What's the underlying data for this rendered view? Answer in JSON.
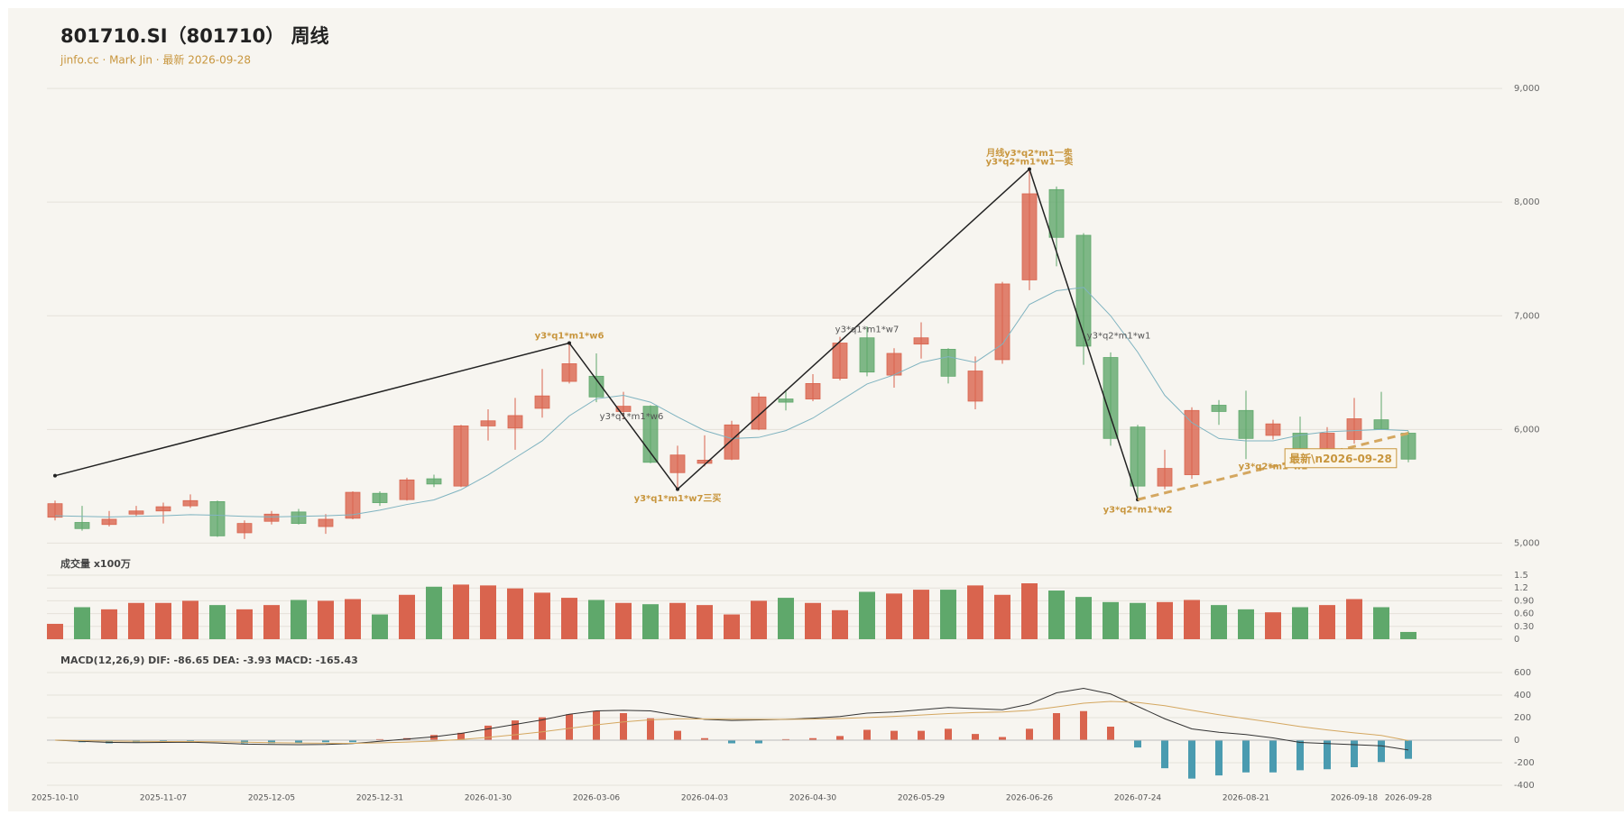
{
  "chart_data": {
    "type": "candlestick",
    "title": "801710.SI（801710） 周线",
    "subtitle": "jinfo.cc · Mark Jin · 最新 2026-09-28",
    "categories": [
      "2025-10-10",
      null,
      null,
      null,
      "2025-11-07",
      null,
      null,
      null,
      "2025-12-05",
      null,
      null,
      null,
      "2025-12-31",
      null,
      null,
      null,
      "2026-01-30",
      null,
      null,
      null,
      "2026-03-06",
      null,
      null,
      null,
      "2026-04-03",
      null,
      null,
      null,
      "2026-04-30",
      null,
      null,
      null,
      "2026-05-29",
      null,
      null,
      null,
      "2026-06-26",
      null,
      null,
      null,
      "2026-07-24",
      null,
      null,
      null,
      "2026-08-21",
      null,
      null,
      null,
      "2026-09-18",
      null,
      "2026-09-28"
    ],
    "open": [
      5228,
      5182,
      5164,
      5255,
      5283,
      5328,
      5365,
      5091,
      5192,
      5274,
      5146,
      5219,
      5438,
      5383,
      5566,
      5502,
      6031,
      6012,
      6186,
      6423,
      6468,
      6158,
      6204,
      5620,
      5702,
      5739,
      6003,
      6268,
      6268,
      6450,
      6806,
      6478,
      6751,
      6705,
      6249,
      6614,
      7316,
      8110,
      7708,
      6633,
      6021,
      5502,
      5602,
      6213,
      6167,
      5948,
      5967,
      5821,
      5912,
      6085,
      5967
    ],
    "high": [
      5374,
      5328,
      5283,
      5328,
      5356,
      5429,
      5374,
      5200,
      5283,
      5301,
      5255,
      5456,
      5456,
      5575,
      5602,
      6040,
      6177,
      6277,
      6532,
      6760,
      6669,
      6331,
      6213,
      5857,
      5948,
      6076,
      6322,
      6350,
      6487,
      6815,
      6906,
      6715,
      6943,
      6715,
      6642,
      7298,
      8290,
      8137,
      7727,
      6678,
      6040,
      5821,
      6195,
      6259,
      6341,
      6085,
      6113,
      6021,
      6277,
      6331,
      5985
    ],
    "low": [
      5200,
      5110,
      5146,
      5237,
      5173,
      5310,
      5055,
      5036,
      5164,
      5164,
      5082,
      5210,
      5328,
      5374,
      5493,
      5493,
      5903,
      5821,
      6104,
      6404,
      6240,
      6094,
      5702,
      5474,
      5675,
      5730,
      5994,
      6167,
      6249,
      6432,
      6468,
      6368,
      6623,
      6404,
      6177,
      6578,
      7225,
      7435,
      6569,
      5857,
      5383,
      5474,
      5566,
      6040,
      5739,
      5912,
      5730,
      5766,
      5875,
      6003,
      5711
    ],
    "close": [
      5347,
      5128,
      5210,
      5283,
      5320,
      5374,
      5064,
      5173,
      5255,
      5173,
      5210,
      5447,
      5356,
      5556,
      5520,
      6031,
      6076,
      6122,
      6295,
      6578,
      6286,
      6204,
      5711,
      5775,
      5730,
      6040,
      6286,
      6240,
      6404,
      6760,
      6505,
      6669,
      6806,
      6468,
      6514,
      7280,
      8073,
      7690,
      6733,
      5921,
      5502,
      5657,
      6167,
      6158,
      5921,
      6049,
      5803,
      5967,
      6094,
      6003,
      5739
    ],
    "ma": [
      5240,
      5235,
      5230,
      5235,
      5240,
      5250,
      5245,
      5235,
      5230,
      5235,
      5240,
      5250,
      5290,
      5340,
      5380,
      5470,
      5600,
      5750,
      5900,
      6120,
      6270,
      6300,
      6240,
      6110,
      5990,
      5920,
      5930,
      5990,
      6100,
      6250,
      6400,
      6480,
      6590,
      6640,
      6590,
      6750,
      7100,
      7220,
      7250,
      7000,
      6680,
      6300,
      6060,
      5920,
      5900,
      5900,
      5950,
      5980,
      5990,
      6000,
      5990
    ],
    "up_color": "#d9644e",
    "down_color": "#5fa86b",
    "ma_color": "#7fb3c0",
    "ylim": [
      4940,
      9080
    ],
    "yticks": [
      {
        "value": 5000,
        "label": "5,000"
      },
      {
        "value": 6000,
        "label": "6,000"
      },
      {
        "value": 7000,
        "label": "7,000"
      },
      {
        "value": 8000,
        "label": "8,000"
      },
      {
        "value": 9000,
        "label": "9,000"
      }
    ],
    "grid": true,
    "zigzag": {
      "x": [
        0,
        19,
        23,
        36,
        40
      ],
      "y": [
        5593,
        6760,
        5474,
        8290,
        5383
      ],
      "color": "#222222"
    },
    "trend": {
      "x": [
        40,
        50
      ],
      "y": [
        5383,
        5967
      ],
      "color": "#d4a760"
    },
    "annotations": [
      {
        "text": "y3*q1*m1*w6",
        "x": 19,
        "y": 6824,
        "color": "#c8963e"
      },
      {
        "text": "y3*q1*m1*w6",
        "x": 21.3,
        "y": 6113,
        "color": "#555555"
      },
      {
        "text": "y3*q1*m1*w7三买",
        "x": 23,
        "y": 5392,
        "color": "#c8963e"
      },
      {
        "text": "y3*q1*m1*w7",
        "x": 30,
        "y": 6879,
        "color": "#555555"
      },
      {
        "text": "月线y3*q2*m1一卖",
        "x": 36,
        "y": 8429,
        "color": "#c8963e"
      },
      {
        "text": "y3*q2*m1*w1一卖",
        "x": 36,
        "y": 8356,
        "color": "#c8963e"
      },
      {
        "text": "y3*q2*m1*w1",
        "x": 39.3,
        "y": 6824,
        "color": "#555555"
      },
      {
        "text": "y3*q2*m1*w2",
        "x": 40,
        "y": 5292,
        "color": "#c8963e"
      },
      {
        "text": "y3*q2*m1*w2",
        "x": 45,
        "y": 5675,
        "color": "#c8963e"
      },
      {
        "text": "最新\\n2026-09-28",
        "x": 47.5,
        "y": 5739,
        "color": "#c8963e",
        "box": true
      }
    ],
    "volume": {
      "title": "成交量 x100万",
      "values": [
        0.36,
        0.75,
        0.7,
        0.85,
        0.85,
        0.9,
        0.8,
        0.7,
        0.8,
        0.92,
        0.9,
        0.94,
        0.58,
        1.04,
        1.23,
        1.28,
        1.26,
        1.19,
        1.09,
        0.97,
        0.92,
        0.85,
        0.82,
        0.85,
        0.8,
        0.58,
        0.9,
        0.97,
        0.85,
        0.68,
        1.11,
        1.07,
        1.16,
        1.16,
        1.26,
        1.04,
        1.31,
        1.14,
        0.99,
        0.87,
        0.85,
        0.87,
        0.92,
        0.8,
        0.7,
        0.63,
        0.75,
        0.8,
        0.94,
        0.75,
        0.17
      ],
      "ylim": [
        0,
        1.5
      ],
      "yticks": [
        0,
        {
          "value": 0.3,
          "label": "0.30"
        },
        {
          "value": 0.6,
          "label": "0.60"
        },
        {
          "value": 0.9,
          "label": "0.90"
        },
        1.2,
        1.5
      ]
    },
    "macd": {
      "title": "MACD(12,26,9) DIF: -86.65 DEA: -3.93 MACD: -165.43",
      "hist": [
        0,
        -18,
        -28,
        -18,
        -10,
        -10,
        0,
        -28,
        -28,
        -28,
        -18,
        -18,
        9,
        18,
        46,
        65,
        129,
        175,
        203,
        230,
        258,
        240,
        194,
        83,
        18,
        -28,
        -28,
        9,
        18,
        37,
        92,
        83,
        83,
        101,
        55,
        28,
        101,
        240,
        258,
        120,
        -65,
        -249,
        -341,
        -313,
        -286,
        -286,
        -267,
        -258,
        -240,
        -194,
        -165.43
      ],
      "dif": [
        0,
        -10,
        -20,
        -22,
        -20,
        -18,
        -25,
        -35,
        -38,
        -40,
        -38,
        -30,
        -10,
        10,
        30,
        60,
        100,
        140,
        180,
        230,
        260,
        265,
        260,
        220,
        185,
        175,
        180,
        185,
        195,
        210,
        240,
        250,
        270,
        290,
        280,
        270,
        320,
        420,
        460,
        410,
        300,
        190,
        100,
        70,
        50,
        20,
        -20,
        -30,
        -40,
        -50,
        -86.65
      ],
      "dea": [
        0,
        -4,
        -8,
        -10,
        -12,
        -12,
        -14,
        -18,
        -22,
        -25,
        -27,
        -28,
        -24,
        -17,
        -8,
        6,
        25,
        48,
        74,
        105,
        136,
        162,
        181,
        189,
        188,
        186,
        185,
        185,
        187,
        192,
        201,
        211,
        223,
        236,
        245,
        250,
        264,
        295,
        328,
        344,
        335,
        306,
        265,
        226,
        191,
        157,
        121,
        91,
        65,
        42,
        -3.93
      ],
      "hist_up_color": "#d9644e",
      "hist_down_color": "#4a9bb0",
      "dif_color": "#333333",
      "dea_color": "#d4a760",
      "ylim": [
        -400,
        600
      ],
      "yticks": [
        -400,
        -200,
        0,
        200,
        400,
        600
      ]
    }
  }
}
